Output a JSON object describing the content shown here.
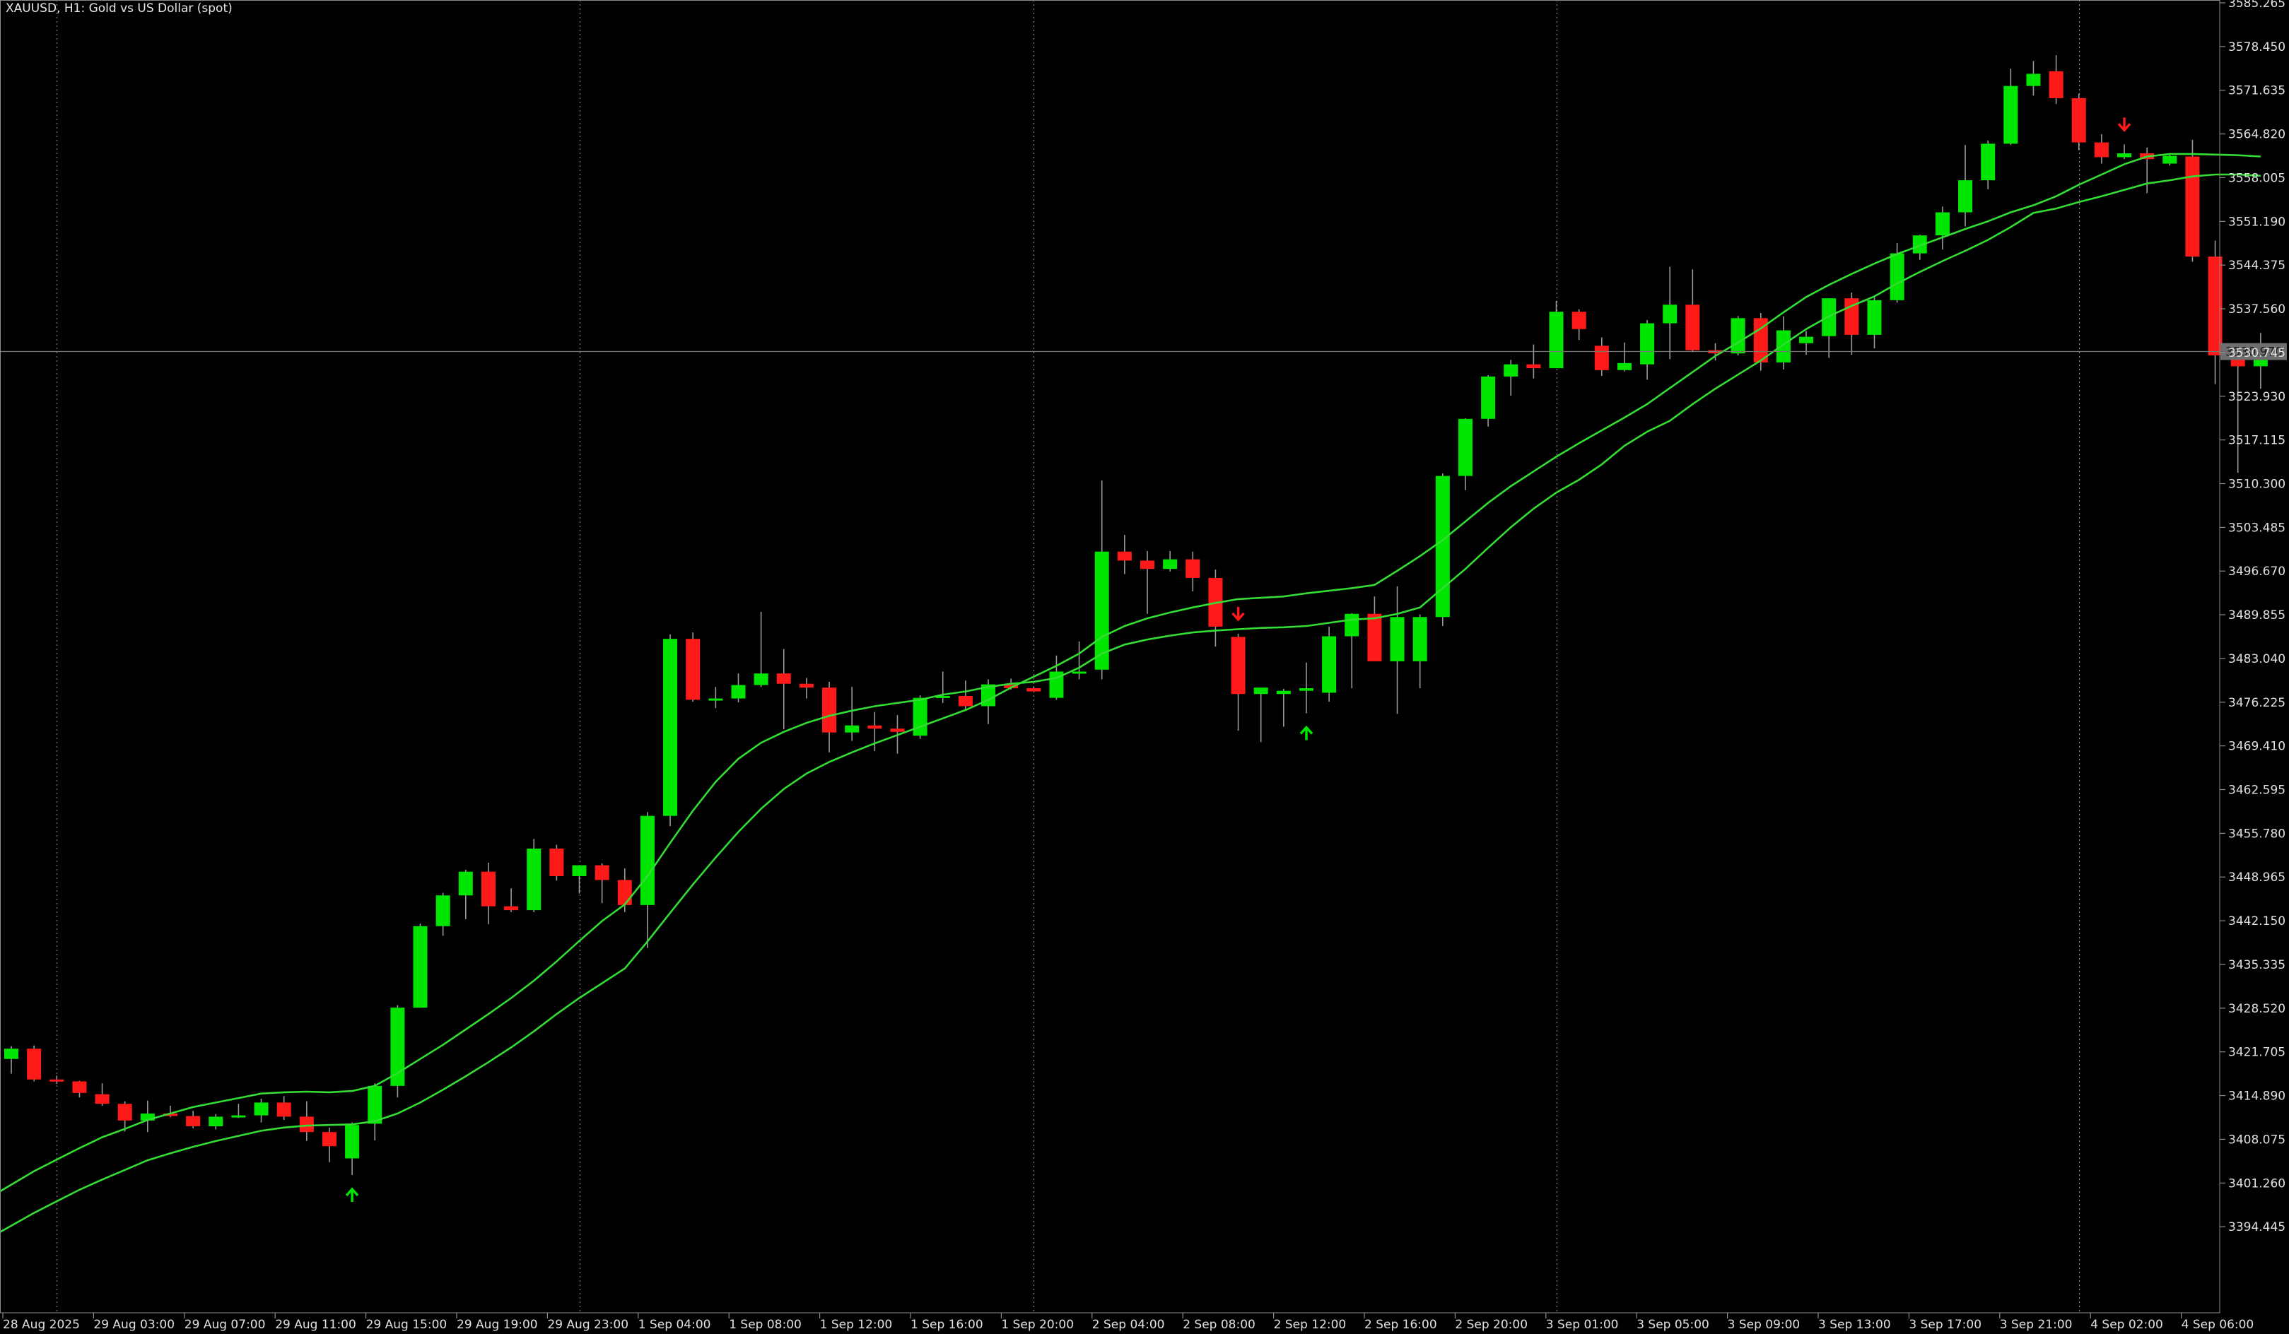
{
  "header": {
    "symbol_title": "XAUUSD, H1:  Gold vs US Dollar (spot)"
  },
  "colors": {
    "background": "#000000",
    "bull": "#00e600",
    "bear": "#ff1a1a",
    "wick": "#9a9a9a",
    "ma": "#33dd33",
    "grid": "#8a8a8a",
    "axis_text": "#e0e0e0",
    "price_line": "#777777",
    "label_bg": "#6e6e6e"
  },
  "chart_data": {
    "type": "candlestick",
    "title": "XAUUSD, H1:  Gold vs US Dollar (spot)",
    "ylim": [
      3387.63,
      3585.265
    ],
    "y_ticks": [
      "3585.265",
      "3578.450",
      "3571.635",
      "3564.820",
      "3558.005",
      "3551.190",
      "3544.375",
      "3537.560",
      "3530.745",
      "3523.930",
      "3517.115",
      "3510.300",
      "3503.485",
      "3496.670",
      "3489.855",
      "3483.040",
      "3476.225",
      "3469.410",
      "3462.595",
      "3455.780",
      "3448.965",
      "3442.150",
      "3435.335",
      "3428.520",
      "3421.705",
      "3414.890",
      "3408.075",
      "3401.260",
      "3394.445"
    ],
    "x_ticks": [
      "28 Aug 2025",
      "29 Aug 03:00",
      "29 Aug 07:00",
      "29 Aug 11:00",
      "29 Aug 15:00",
      "29 Aug 19:00",
      "29 Aug 23:00",
      "1 Sep 04:00",
      "1 Sep 08:00",
      "1 Sep 12:00",
      "1 Sep 16:00",
      "1 Sep 20:00",
      "2 Sep 04:00",
      "2 Sep 08:00",
      "2 Sep 12:00",
      "2 Sep 16:00",
      "2 Sep 20:00",
      "3 Sep 01:00",
      "3 Sep 05:00",
      "3 Sep 09:00",
      "3 Sep 13:00",
      "3 Sep 17:00",
      "3 Sep 21:00",
      "4 Sep 02:00",
      "4 Sep 06:00"
    ],
    "period_separators": [
      2,
      25,
      45,
      68,
      91
    ],
    "current_price": "3530.970",
    "series": [
      {
        "type": "ohlc",
        "values": [
          [
            3420.6,
            3422.6,
            3418.3,
            3422.2
          ],
          [
            3422.2,
            3422.7,
            3417.1,
            3417.4
          ],
          [
            3417.4,
            3418.0,
            3416.7,
            3417.1
          ],
          [
            3417.1,
            3417.2,
            3414.6,
            3415.3
          ],
          [
            3415.1,
            3416.8,
            3413.3,
            3413.6
          ],
          [
            3413.6,
            3414.0,
            3409.3,
            3411.0
          ],
          [
            3411.0,
            3414.1,
            3409.2,
            3412.1
          ],
          [
            3412.1,
            3413.3,
            3411.5,
            3411.7
          ],
          [
            3411.7,
            3412.5,
            3409.8,
            3410.1
          ],
          [
            3410.1,
            3412.0,
            3409.6,
            3411.6
          ],
          [
            3411.6,
            3413.6,
            3411.4,
            3411.8
          ],
          [
            3411.8,
            3414.4,
            3410.7,
            3413.8
          ],
          [
            3413.8,
            3414.8,
            3411.1,
            3411.6
          ],
          [
            3411.6,
            3414.0,
            3407.8,
            3409.2
          ],
          [
            3409.2,
            3409.9,
            3404.5,
            3407.0
          ],
          [
            3405.1,
            3410.7,
            3402.5,
            3410.3
          ],
          [
            3410.5,
            3416.8,
            3407.9,
            3416.4
          ],
          [
            3416.4,
            3429.0,
            3414.6,
            3428.6
          ],
          [
            3428.6,
            3441.7,
            3428.6,
            3441.3
          ],
          [
            3441.3,
            3446.5,
            3439.8,
            3446.1
          ],
          [
            3446.1,
            3450.1,
            3442.4,
            3449.8
          ],
          [
            3449.8,
            3451.2,
            3441.6,
            3444.4
          ],
          [
            3444.4,
            3447.2,
            3443.5,
            3443.8
          ],
          [
            3443.8,
            3454.9,
            3443.5,
            3453.4
          ],
          [
            3453.4,
            3454.0,
            3448.4,
            3449.1
          ],
          [
            3449.1,
            3450.8,
            3446.4,
            3450.8
          ],
          [
            3450.8,
            3451.1,
            3444.9,
            3448.5
          ],
          [
            3448.5,
            3450.3,
            3443.5,
            3444.6
          ],
          [
            3444.6,
            3459.1,
            3437.9,
            3458.5
          ],
          [
            3458.5,
            3486.8,
            3456.9,
            3486.1
          ],
          [
            3486.1,
            3487.1,
            3476.3,
            3476.6
          ],
          [
            3476.6,
            3478.6,
            3475.3,
            3476.8
          ],
          [
            3476.8,
            3480.7,
            3476.2,
            3478.9
          ],
          [
            3478.9,
            3490.3,
            3478.6,
            3480.7
          ],
          [
            3480.7,
            3484.5,
            3472.0,
            3479.1
          ],
          [
            3479.1,
            3480.0,
            3476.8,
            3478.5
          ],
          [
            3478.5,
            3479.4,
            3468.4,
            3471.5
          ],
          [
            3471.5,
            3478.6,
            3470.2,
            3472.6
          ],
          [
            3472.6,
            3474.7,
            3468.6,
            3472.1
          ],
          [
            3472.1,
            3474.2,
            3468.2,
            3471.6
          ],
          [
            3471.0,
            3477.3,
            3470.5,
            3476.9
          ],
          [
            3476.9,
            3481.0,
            3476.1,
            3477.2
          ],
          [
            3477.2,
            3479.6,
            3474.9,
            3475.6
          ],
          [
            3475.6,
            3479.8,
            3472.8,
            3479.0
          ],
          [
            3479.0,
            3479.9,
            3478.2,
            3478.4
          ],
          [
            3478.4,
            3478.7,
            3477.9,
            3477.9
          ],
          [
            3476.9,
            3483.5,
            3476.6,
            3481.0
          ],
          [
            3481.0,
            3485.7,
            3479.8,
            3481.0
          ],
          [
            3481.3,
            3510.8,
            3479.8,
            3499.7
          ],
          [
            3499.7,
            3502.3,
            3496.2,
            3498.3
          ],
          [
            3498.3,
            3499.8,
            3490.0,
            3497.0
          ],
          [
            3497.0,
            3499.8,
            3496.6,
            3498.5
          ],
          [
            3498.5,
            3499.7,
            3493.5,
            3495.6
          ],
          [
            3495.6,
            3496.9,
            3484.9,
            3488.0
          ],
          [
            3486.4,
            3486.9,
            3471.8,
            3477.5
          ],
          [
            3477.5,
            3478.3,
            3470.0,
            3478.5
          ],
          [
            3477.5,
            3478.3,
            3472.4,
            3478.0
          ],
          [
            3478.0,
            3482.4,
            3474.5,
            3478.4
          ],
          [
            3477.7,
            3488.0,
            3476.3,
            3486.5
          ],
          [
            3486.5,
            3490.1,
            3478.4,
            3490.0
          ],
          [
            3490.0,
            3492.7,
            3483.8,
            3482.6
          ],
          [
            3482.6,
            3494.3,
            3474.4,
            3489.5
          ],
          [
            3482.6,
            3489.9,
            3478.4,
            3489.5
          ],
          [
            3489.5,
            3511.9,
            3488.1,
            3511.5
          ],
          [
            3511.5,
            3520.5,
            3509.3,
            3520.4
          ],
          [
            3520.4,
            3527.2,
            3519.2,
            3527.0
          ],
          [
            3527.0,
            3529.6,
            3524.0,
            3528.9
          ],
          [
            3528.9,
            3532.0,
            3526.7,
            3528.3
          ],
          [
            3528.3,
            3538.8,
            3528.3,
            3537.1
          ],
          [
            3537.1,
            3537.5,
            3532.7,
            3534.4
          ],
          [
            3531.8,
            3533.1,
            3527.1,
            3528.0
          ],
          [
            3528.0,
            3532.3,
            3527.8,
            3529.1
          ],
          [
            3528.9,
            3535.8,
            3526.5,
            3535.3
          ],
          [
            3535.3,
            3544.1,
            3529.7,
            3538.2
          ],
          [
            3538.2,
            3543.7,
            3530.8,
            3531.1
          ],
          [
            3531.1,
            3532.2,
            3529.5,
            3530.6
          ],
          [
            3530.6,
            3536.4,
            3530.3,
            3536.1
          ],
          [
            3536.1,
            3536.9,
            3527.9,
            3529.2
          ],
          [
            3529.2,
            3536.4,
            3528.1,
            3534.2
          ],
          [
            3532.2,
            3534.1,
            3530.4,
            3533.2
          ],
          [
            3533.3,
            3538.3,
            3529.9,
            3539.2
          ],
          [
            3539.2,
            3540.1,
            3530.4,
            3533.5
          ],
          [
            3533.5,
            3539.4,
            3531.4,
            3538.9
          ],
          [
            3538.9,
            3547.8,
            3538.5,
            3546.2
          ],
          [
            3546.2,
            3549.1,
            3545.2,
            3549.0
          ],
          [
            3549.0,
            3553.5,
            3546.8,
            3552.6
          ],
          [
            3552.6,
            3563.1,
            3550.4,
            3557.6
          ],
          [
            3557.6,
            3563.8,
            3556.2,
            3563.3
          ],
          [
            3563.3,
            3575.0,
            3563.1,
            3572.3
          ],
          [
            3572.3,
            3576.2,
            3570.8,
            3574.2
          ],
          [
            3574.6,
            3577.1,
            3569.5,
            3570.4
          ],
          [
            3570.4,
            3571.1,
            3562.3,
            3563.5
          ],
          [
            3563.5,
            3564.8,
            3560.2,
            3561.2
          ],
          [
            3561.2,
            3563.2,
            3560.9,
            3561.8
          ],
          [
            3561.8,
            3562.7,
            3555.6,
            3560.9
          ],
          [
            3560.2,
            3561.8,
            3559.9,
            3561.4
          ],
          [
            3561.3,
            3563.9,
            3544.9,
            3545.7
          ],
          [
            3545.7,
            3548.2,
            3525.8,
            3530.3
          ],
          [
            3530.3,
            3531.0,
            3512.0,
            3528.6
          ],
          [
            3528.6,
            3533.8,
            3525.1,
            3530.3
          ]
        ]
      },
      {
        "type": "ma",
        "values": [
          3401,
          3403.1,
          3404.9,
          3406.7,
          3408.4,
          3409.7,
          3411.1,
          3412.1,
          3413.1,
          3413.8,
          3414.5,
          3415.2,
          3415.4,
          3415.5,
          3415.4,
          3415.6,
          3416.4,
          3418.4,
          3420.6,
          3422.8,
          3425.2,
          3427.6,
          3430.1,
          3432.8,
          3435.8,
          3439.0,
          3442.1,
          3444.7,
          3449.1,
          3454.3,
          3459.3,
          3463.8,
          3467.4,
          3469.9,
          3471.6,
          3473.0,
          3474.1,
          3474.9,
          3475.6,
          3476.1,
          3476.6,
          3477.4,
          3477.9,
          3478.6,
          3479.1,
          3479.4,
          3480.0,
          3481.6,
          3483.8,
          3485.2,
          3486.0,
          3486.6,
          3487.1,
          3487.4,
          3487.6,
          3487.8,
          3487.9,
          3488.1,
          3488.6,
          3489.1,
          3489.3,
          3490.0,
          3491.0,
          3494.0,
          3497.0,
          3500.3,
          3503.5,
          3506.4,
          3508.9,
          3510.9,
          3513.3,
          3516.2,
          3518.4,
          3520.1,
          3522.7,
          3525.1,
          3527.3,
          3529.5,
          3532.0,
          3534.4,
          3536.4,
          3538.0,
          3539.5,
          3541.5,
          3543.3,
          3545.0,
          3546.6,
          3548.3,
          3550.3,
          3552.5,
          3553.2,
          3554.2,
          3555.1,
          3556.1,
          3557.1,
          3557.6,
          3558.2,
          3558.5,
          3558.5,
          3558.3
        ]
      },
      {
        "type": "ma",
        "values": [
          3394.6,
          3396.6,
          3398.4,
          3400.2,
          3401.8,
          3403.3,
          3404.8,
          3405.9,
          3406.9,
          3407.8,
          3408.6,
          3409.4,
          3409.9,
          3410.2,
          3410.3,
          3410.4,
          3410.9,
          3412.1,
          3413.8,
          3415.8,
          3417.9,
          3420.1,
          3422.4,
          3424.9,
          3427.6,
          3430.1,
          3432.4,
          3434.7,
          3438.9,
          3443.4,
          3447.8,
          3452.0,
          3456.0,
          3459.6,
          3462.7,
          3465.1,
          3466.9,
          3468.4,
          3469.8,
          3471.1,
          3472.4,
          3473.7,
          3475.0,
          3476.6,
          3478.5,
          3480.2,
          3481.9,
          3483.8,
          3486.4,
          3488.1,
          3489.3,
          3490.2,
          3491.0,
          3491.7,
          3492.3,
          3492.5,
          3492.7,
          3493.2,
          3493.6,
          3494.0,
          3494.5,
          3496.7,
          3499.0,
          3501.5,
          3504.4,
          3507.3,
          3509.9,
          3512.2,
          3514.5,
          3516.6,
          3518.6,
          3520.6,
          3522.7,
          3525.2,
          3527.7,
          3530.2,
          3532.3,
          3534.5,
          3537.0,
          3539.4,
          3541.3,
          3543.0,
          3544.6,
          3546.1,
          3547.4,
          3548.7,
          3550.0,
          3551.2,
          3552.6,
          3553.7,
          3555.1,
          3556.9,
          3558.5,
          3560.1,
          3561.3,
          3561.7,
          3561.7,
          3561.6,
          3561.5,
          3561.3
        ]
      }
    ],
    "buy_arrows": [
      15,
      57
    ],
    "sell_arrows": [
      54,
      93
    ],
    "grid": false
  }
}
